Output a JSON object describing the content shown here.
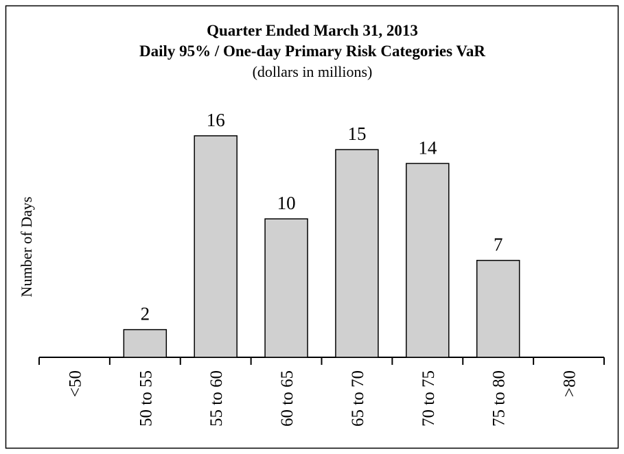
{
  "chart_data": {
    "type": "bar",
    "title": "Quarter Ended March 31, 2013",
    "subtitle": "Daily 95% / One-day Primary Risk Categories VaR",
    "note": "(dollars in millions)",
    "y_label": "Number of Days",
    "categories": [
      "<50",
      "50 to 55",
      "55 to 60",
      "60 to 65",
      "65 to 70",
      "70 to 75",
      "75 to 80",
      ">80"
    ],
    "values": [
      0,
      2,
      16,
      10,
      15,
      14,
      7,
      0
    ],
    "color": "#d0d0d0"
  }
}
